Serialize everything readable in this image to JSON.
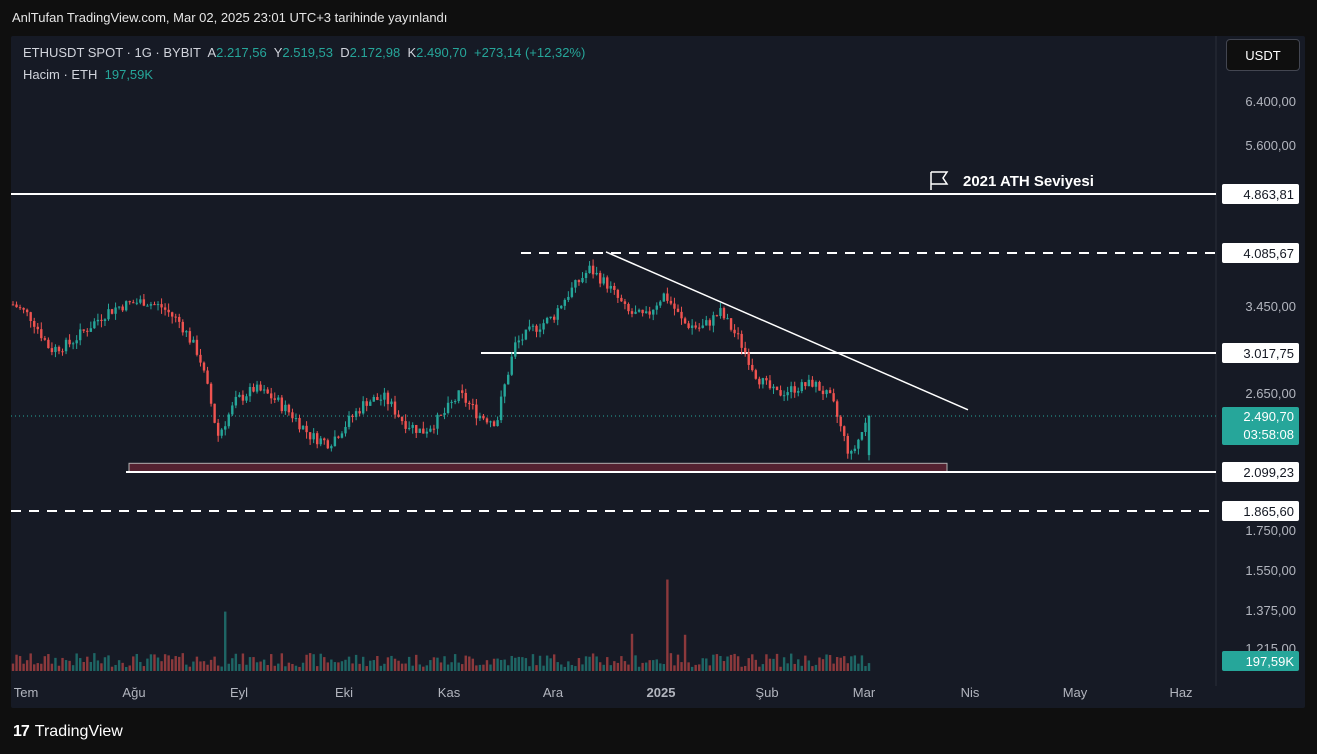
{
  "header": {
    "published": "AnlTufan TradingView.com, Mar 02, 2025 23:01 UTC+3 tarihinde yayınlandı"
  },
  "legend": {
    "symbol": "ETHUSDT SPOT · 1G · BYBIT",
    "open_label": "A",
    "open": "2.217,56",
    "high_label": "Y",
    "high": "2.519,53",
    "low_label": "D",
    "low": "2.172,98",
    "close_label": "K",
    "close": "2.490,70",
    "change": "+273,14 (+12,32%)",
    "volume_label": "Hacim · ETH",
    "volume_value": "197,59K"
  },
  "toolbar": {
    "currency_button": "USDT"
  },
  "footer": {
    "logo_mark": "17",
    "logo_text": "TradingView"
  },
  "colors": {
    "up": "#26a69a",
    "down": "#ef5350",
    "background": "#161a25",
    "page": "#0f0f0f"
  },
  "chart_data": {
    "type": "candlestick",
    "symbol": "ETHUSDT",
    "price_axis_labels": [
      "6.400,00",
      "5.600,00",
      "3.450,00",
      "2.650,00",
      "1.750,00",
      "1.550,00",
      "1.375,00",
      "1.215,00"
    ],
    "time_axis_labels": [
      "Tem",
      "Ağu",
      "Eyl",
      "Eki",
      "Kas",
      "Ara",
      "2025",
      "Şub",
      "Mar",
      "Nis",
      "May",
      "Haz"
    ],
    "horizontal_levels": [
      {
        "price": 4863.81,
        "label": "4.863,81",
        "style": "solid"
      },
      {
        "price": 4085.67,
        "label": "4.085,67",
        "style": "dashed"
      },
      {
        "price": 3017.75,
        "label": "3.017,75",
        "style": "solid"
      },
      {
        "price": 2099.23,
        "label": "2.099,23",
        "style": "solid"
      },
      {
        "price": 1865.6,
        "label": "1.865,60",
        "style": "dashed"
      }
    ],
    "annotation": {
      "text": "2021 ATH Seviyesi",
      "icon": "flag-icon"
    },
    "trendline": {
      "from": [
        "Ara",
        4100
      ],
      "to": [
        "Mar",
        2450
      ]
    },
    "support_zone": {
      "from": "Tem",
      "to": "Mar",
      "price_low": 2099.23,
      "price_high": 2160
    },
    "last_price": {
      "value": 2490.7,
      "label": "2.490,70",
      "countdown": "03:58:08"
    },
    "volume_last": "197,59K",
    "close_series": [
      [
        "Tem",
        3480
      ],
      [
        "Tem",
        3350
      ],
      [
        "Tem",
        3050
      ],
      [
        "Tem",
        3100
      ],
      [
        "Tem",
        3250
      ],
      [
        "Tem",
        3400
      ],
      [
        "Tem",
        3480
      ],
      [
        "Tem",
        3520
      ],
      [
        "Tem",
        3450
      ],
      [
        "Tem",
        3300
      ],
      [
        "Ağu",
        3000
      ],
      [
        "Ağu",
        2350
      ],
      [
        "Ağu",
        2600
      ],
      [
        "Ağu",
        2700
      ],
      [
        "Ağu",
        2620
      ],
      [
        "Eyl",
        2500
      ],
      [
        "Eyl",
        2350
      ],
      [
        "Eyl",
        2300
      ],
      [
        "Eyl",
        2450
      ],
      [
        "Eyl",
        2600
      ],
      [
        "Eki",
        2620
      ],
      [
        "Eki",
        2450
      ],
      [
        "Eki",
        2380
      ],
      [
        "Eki",
        2480
      ],
      [
        "Eki",
        2650
      ],
      [
        "Kas",
        2500
      ],
      [
        "Kas",
        2450
      ],
      [
        "Kas",
        3100
      ],
      [
        "Kas",
        3250
      ],
      [
        "Kas",
        3350
      ],
      [
        "Ara",
        3650
      ],
      [
        "Ara",
        3900
      ],
      [
        "Ara",
        3700
      ],
      [
        "Ara",
        3400
      ],
      [
        "Ara",
        3350
      ],
      [
        "2025",
        3600
      ],
      [
        "2025",
        3300
      ],
      [
        "2025",
        3250
      ],
      [
        "2025",
        3400
      ],
      [
        "2025",
        3150
      ],
      [
        "Şub",
        2800
      ],
      [
        "Şub",
        2650
      ],
      [
        "Şub",
        2700
      ],
      [
        "Şub",
        2750
      ],
      [
        "Şub",
        2600
      ],
      [
        "Mar",
        2200
      ],
      [
        "Mar",
        2490.7
      ]
    ]
  }
}
